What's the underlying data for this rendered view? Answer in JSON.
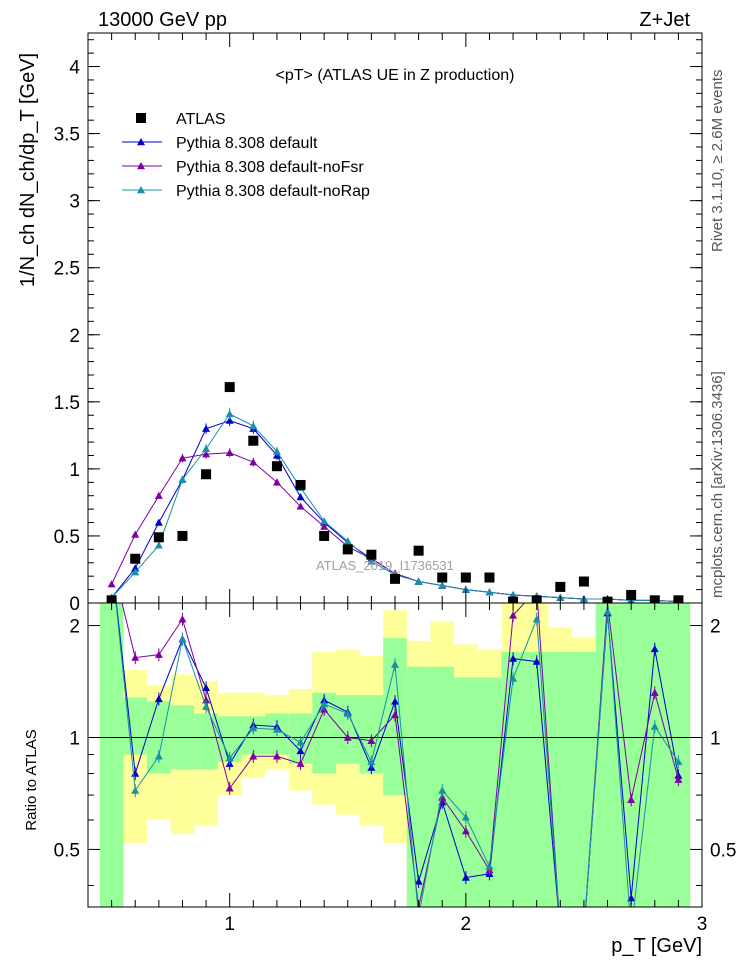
{
  "header": {
    "left": "13000 GeV pp",
    "right": "Z+Jet",
    "side_top": "Rivet 3.1.10, ≥ 2.6M events",
    "side_bottom": "mcplots.cern.ch [arXiv:1306.3436]",
    "watermark": "ATLAS_2019_I1736531"
  },
  "chart_data": [
    {
      "type": "scatter",
      "title": "<pT> (ATLAS UE in Z production)",
      "ylabel": "1/N_ch dN_ch/dp_T [GeV]",
      "xlim": [
        0.4,
        3.0
      ],
      "ylim": [
        0,
        4.25
      ],
      "yticks": [
        "0",
        "0.5",
        "1",
        "1.5",
        "2",
        "2.5",
        "3",
        "3.5",
        "4"
      ],
      "x": [
        0.5,
        0.6,
        0.7,
        0.8,
        0.9,
        1.0,
        1.1,
        1.2,
        1.3,
        1.4,
        1.5,
        1.6,
        1.7,
        1.8,
        1.9,
        2.0,
        2.1,
        2.2,
        2.3,
        2.4,
        2.5,
        2.6,
        2.7,
        2.8,
        2.9
      ],
      "series": [
        {
          "name": "ATLAS",
          "color": "#000000",
          "marker": "square",
          "values": [
            0.02,
            0.33,
            0.49,
            0.5,
            0.96,
            1.61,
            1.21,
            1.02,
            0.88,
            0.5,
            0.4,
            0.36,
            0.18,
            0.39,
            0.19,
            0.19,
            0.19,
            0.01,
            0.02,
            0.12,
            0.16,
            0.01,
            0.06,
            0.02,
            0.02
          ]
        },
        {
          "name": "Pythia 8.308 default",
          "color": "#0000cc",
          "marker": "triangle",
          "values": [
            0.04,
            0.26,
            0.6,
            0.92,
            1.3,
            1.36,
            1.3,
            1.1,
            0.79,
            0.6,
            0.45,
            0.33,
            0.22,
            0.16,
            0.13,
            0.1,
            0.08,
            0.06,
            0.05,
            0.04,
            0.03,
            0.03,
            0.02,
            0.02,
            0.01
          ]
        },
        {
          "name": "Pythia 8.308 default-noFsr",
          "color": "#8000a0",
          "marker": "triangle",
          "values": [
            0.14,
            0.51,
            0.8,
            1.08,
            1.11,
            1.12,
            1.05,
            0.9,
            0.72,
            0.57,
            0.42,
            0.33,
            0.22,
            0.16,
            0.13,
            0.1,
            0.08,
            0.06,
            0.05,
            0.04,
            0.03,
            0.03,
            0.02,
            0.02,
            0.01
          ]
        },
        {
          "name": "Pythia 8.308 default-noRap",
          "color": "#1a8fa8",
          "marker": "triangle",
          "values": [
            0.04,
            0.23,
            0.43,
            0.92,
            1.15,
            1.41,
            1.32,
            1.13,
            0.86,
            0.61,
            0.46,
            0.31,
            0.21,
            0.16,
            0.13,
            0.1,
            0.08,
            0.06,
            0.05,
            0.04,
            0.03,
            0.03,
            0.02,
            0.02,
            0.01
          ]
        }
      ]
    },
    {
      "type": "line",
      "ylabel": "Ratio to ATLAS",
      "xlabel": "p_T [GeV]",
      "xlim": [
        0.4,
        3.0
      ],
      "ylim": [
        0.35,
        2.3
      ],
      "xticks": [
        "1",
        "2",
        "3"
      ],
      "yticks": [
        "0.5",
        "1",
        "2"
      ],
      "reference_line": 1,
      "x": [
        0.5,
        0.6,
        0.7,
        0.8,
        0.9,
        1.0,
        1.1,
        1.2,
        1.3,
        1.4,
        1.5,
        1.6,
        1.7,
        1.8,
        1.9,
        2.0,
        2.1,
        2.2,
        2.3,
        2.4,
        2.5,
        2.6,
        2.7,
        2.8,
        2.9
      ],
      "bands": {
        "yellow_color": "#ffff99",
        "green_color": "#99ff99",
        "yellow_lo": [
          0.0,
          0.52,
          0.6,
          0.55,
          0.58,
          0.7,
          0.78,
          0.82,
          0.72,
          0.66,
          0.62,
          0.58,
          0.52,
          0.0,
          0.0,
          0.0,
          0.0,
          0.0,
          0.0,
          0.52,
          0.46,
          0.0,
          0.0,
          0.0,
          0.0
        ],
        "yellow_hi": [
          9.0,
          1.52,
          1.38,
          1.48,
          1.42,
          1.32,
          1.32,
          1.3,
          1.35,
          1.7,
          1.72,
          1.66,
          2.2,
          1.82,
          2.05,
          1.78,
          1.72,
          9.0,
          9.0,
          1.98,
          1.86,
          9.0,
          9.0,
          9.0,
          9.0
        ],
        "green_lo": [
          0.0,
          0.9,
          0.8,
          0.82,
          0.82,
          0.86,
          0.9,
          0.9,
          0.85,
          0.8,
          0.85,
          0.8,
          0.7,
          0.0,
          0.3,
          0.3,
          0.0,
          0.0,
          0.0,
          0.0,
          0.0,
          0.0,
          0.0,
          0.0,
          0.0
        ],
        "green_hi": [
          9.0,
          1.28,
          1.25,
          1.22,
          1.16,
          1.14,
          1.14,
          1.16,
          1.16,
          1.32,
          1.3,
          1.3,
          1.85,
          1.55,
          1.55,
          1.45,
          1.45,
          1.7,
          1.7,
          1.7,
          1.7,
          9.0,
          9.0,
          9.0,
          9.0
        ]
      },
      "series": [
        {
          "name": "Pythia 8.308 default",
          "color": "#0000cc",
          "values": [
            3.0,
            0.8,
            1.27,
            1.84,
            1.36,
            0.85,
            1.08,
            1.07,
            0.92,
            1.26,
            1.17,
            0.83,
            1.25,
            0.41,
            0.67,
            0.42,
            0.43,
            1.63,
            1.6,
            0.3,
            0.3,
            2.16,
            0.37,
            1.73,
            0.79
          ]
        },
        {
          "name": "Pythia 8.308 default-noFsr",
          "color": "#8000a0",
          "values": [
            3.0,
            1.64,
            1.67,
            2.08,
            1.26,
            0.73,
            0.89,
            0.89,
            0.85,
            1.19,
            1.0,
            0.98,
            1.15,
            0.35,
            0.69,
            0.56,
            0.44,
            2.13,
            2.5,
            0.3,
            0.3,
            2.3,
            0.68,
            1.32,
            0.77
          ]
        },
        {
          "name": "Pythia 8.308 default-noRap",
          "color": "#1a8fa8",
          "values": [
            3.0,
            0.72,
            0.89,
            1.84,
            1.21,
            0.88,
            1.06,
            1.05,
            0.97,
            1.23,
            1.16,
            0.86,
            1.57,
            0.33,
            0.72,
            0.61,
            0.45,
            1.44,
            2.08,
            0.3,
            0.3,
            2.18,
            0.3,
            1.07,
            0.86
          ]
        }
      ]
    }
  ]
}
